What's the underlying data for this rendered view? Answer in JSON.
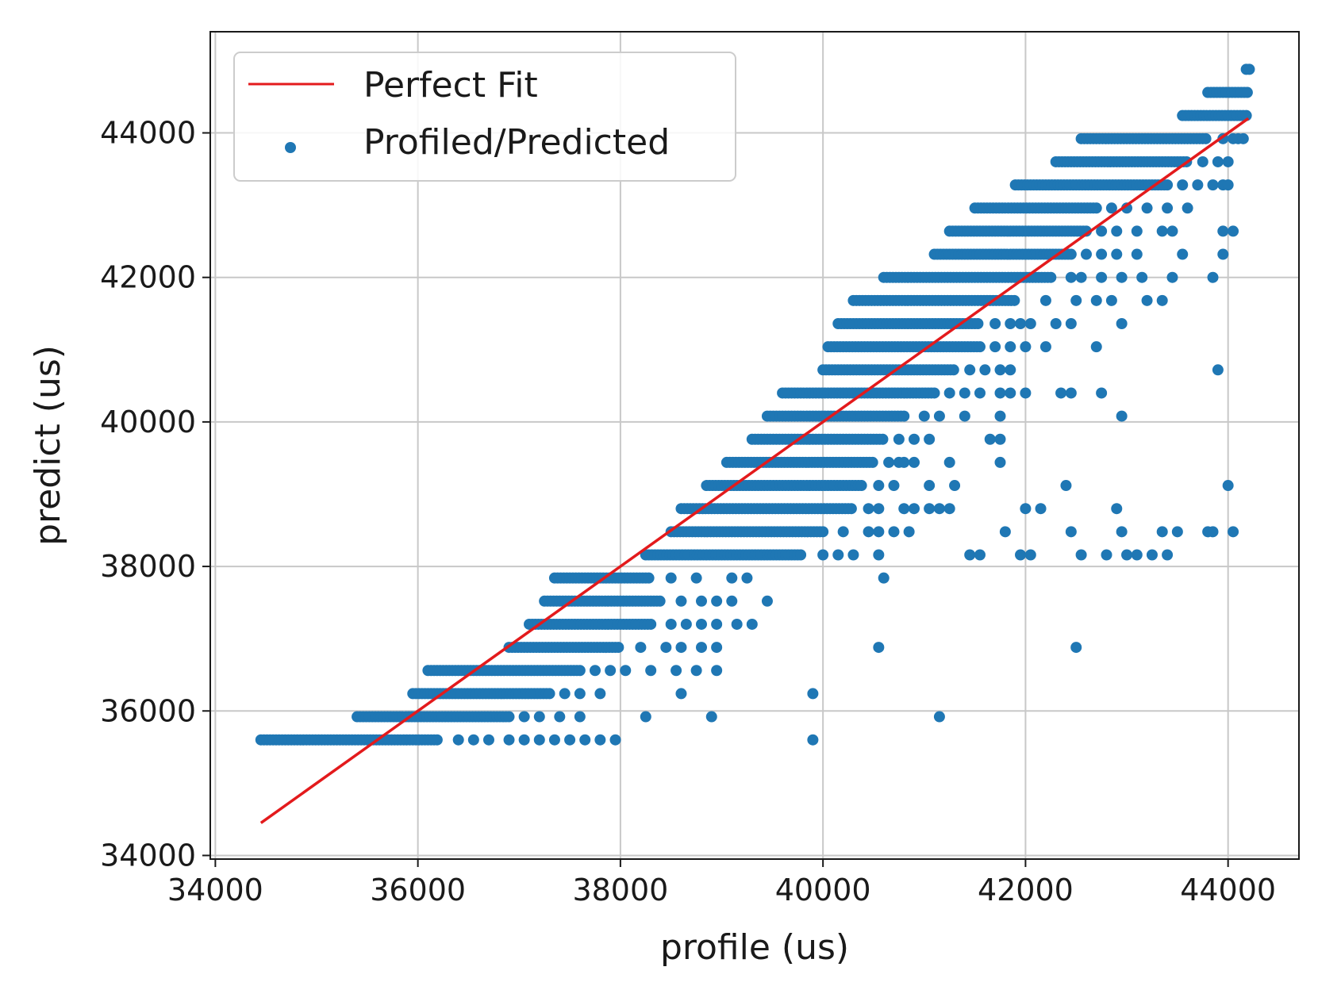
{
  "chart_data": {
    "type": "scatter",
    "title": "",
    "xlabel": "profile (us)",
    "ylabel": "predict (us)",
    "xlim": [
      33950,
      44700
    ],
    "ylim": [
      33950,
      45400
    ],
    "xticks": [
      34000,
      36000,
      38000,
      40000,
      42000,
      44000
    ],
    "yticks": [
      34000,
      36000,
      38000,
      40000,
      42000,
      44000
    ],
    "grid": true,
    "legend_position": "upper-left",
    "colors": {
      "line": "#e31a1c",
      "points": "#1f77b4"
    },
    "series": [
      {
        "name": "Perfect Fit",
        "kind": "line",
        "x": [
          34450,
          44200
        ],
        "y": [
          34450,
          44200
        ]
      },
      {
        "name": "Profiled/Predicted",
        "kind": "scatter",
        "bands": [
          {
            "y": 35600,
            "x_from": 34450,
            "x_to": 36200,
            "dense_to": 36200,
            "sparse": [
              36400,
              36550,
              36700,
              36900,
              37050,
              37200,
              37350,
              37500,
              37650,
              37800,
              37950,
              39900
            ]
          },
          {
            "y": 35920,
            "x_from": 35400,
            "x_to": 36900,
            "dense_to": 36900,
            "sparse": [
              37050,
              37200,
              37400,
              37600,
              38250,
              38900,
              41150
            ]
          },
          {
            "y": 36240,
            "x_from": 35950,
            "x_to": 37300,
            "dense_to": 37300,
            "sparse": [
              37450,
              37600,
              37800,
              38600,
              39900
            ]
          },
          {
            "y": 36560,
            "x_from": 36100,
            "x_to": 37600,
            "dense_to": 37600,
            "sparse": [
              37750,
              37900,
              38050,
              38300,
              38550,
              38750,
              38950
            ]
          },
          {
            "y": 36880,
            "x_from": 36900,
            "x_to": 38000,
            "dense_to": 38000,
            "sparse": [
              38200,
              38450,
              38600,
              38800,
              38950,
              40550,
              42500
            ]
          },
          {
            "y": 37200,
            "x_from": 37100,
            "x_to": 38300,
            "dense_to": 38300,
            "sparse": [
              38500,
              38650,
              38800,
              38950,
              39150,
              39300
            ]
          },
          {
            "y": 37520,
            "x_from": 37250,
            "x_to": 38400,
            "dense_to": 38400,
            "sparse": [
              38600,
              38800,
              38950,
              39100,
              39450
            ]
          },
          {
            "y": 37840,
            "x_from": 37350,
            "x_to": 38300,
            "dense_to": 38300,
            "sparse": [
              38500,
              38750,
              39100,
              39250,
              40600
            ]
          },
          {
            "y": 38160,
            "x_from": 38250,
            "x_to": 39800,
            "dense_to": 39800,
            "sparse": [
              40000,
              40150,
              40300,
              40550,
              41450,
              41550,
              41950,
              42050,
              42550,
              42800,
              43000,
              43100,
              43250,
              43400
            ]
          },
          {
            "y": 38480,
            "x_from": 38500,
            "x_to": 40000,
            "dense_to": 40000,
            "sparse": [
              40200,
              40450,
              40550,
              40700,
              40850,
              41800,
              42450,
              42950,
              43350,
              43500,
              43800,
              43850,
              44050
            ]
          },
          {
            "y": 38800,
            "x_from": 38600,
            "x_to": 40300,
            "dense_to": 40300,
            "sparse": [
              40450,
              40550,
              40800,
              40900,
              41050,
              41150,
              41250,
              42000,
              42150,
              42900
            ]
          },
          {
            "y": 39120,
            "x_from": 38850,
            "x_to": 40400,
            "dense_to": 40400,
            "sparse": [
              40550,
              40700,
              41050,
              41300,
              42400,
              44000
            ]
          },
          {
            "y": 39440,
            "x_from": 39050,
            "x_to": 40500,
            "dense_to": 40500,
            "sparse": [
              40650,
              40750,
              40800,
              40900,
              41250,
              41750
            ]
          },
          {
            "y": 39760,
            "x_from": 39300,
            "x_to": 40600,
            "dense_to": 40600,
            "sparse": [
              40750,
              40900,
              41050,
              41650,
              41750
            ]
          },
          {
            "y": 40080,
            "x_from": 39450,
            "x_to": 40800,
            "dense_to": 40800,
            "sparse": [
              41000,
              41150,
              41400,
              41750,
              42950
            ]
          },
          {
            "y": 40400,
            "x_from": 39600,
            "x_to": 41100,
            "dense_to": 41100,
            "sparse": [
              41250,
              41400,
              41550,
              41750,
              41850,
              42000,
              42350,
              42450,
              42750
            ]
          },
          {
            "y": 40720,
            "x_from": 40000,
            "x_to": 41300,
            "dense_to": 41300,
            "sparse": [
              41450,
              41600,
              41750,
              41850,
              43900
            ]
          },
          {
            "y": 41040,
            "x_from": 40050,
            "x_to": 41550,
            "dense_to": 41550,
            "sparse": [
              41700,
              41850,
              42000,
              42200,
              42700
            ]
          },
          {
            "y": 41360,
            "x_from": 40150,
            "x_to": 41550,
            "dense_to": 41550,
            "sparse": [
              41700,
              41850,
              41950,
              42050,
              42300,
              42450,
              42950
            ]
          },
          {
            "y": 41680,
            "x_from": 40300,
            "x_to": 41900,
            "dense_to": 41900,
            "sparse": [
              42200,
              42500,
              42700,
              42850,
              43200,
              43350
            ]
          },
          {
            "y": 42000,
            "x_from": 40600,
            "x_to": 42250,
            "dense_to": 42250,
            "sparse": [
              42450,
              42550,
              42750,
              42950,
              43150,
              43450,
              43850
            ]
          },
          {
            "y": 42320,
            "x_from": 41100,
            "x_to": 42450,
            "dense_to": 42450,
            "sparse": [
              42600,
              42750,
              42900,
              43100,
              43550,
              43950
            ]
          },
          {
            "y": 42640,
            "x_from": 41250,
            "x_to": 42600,
            "dense_to": 42600,
            "sparse": [
              42750,
              42900,
              43100,
              43350,
              43450,
              43950,
              44050
            ]
          },
          {
            "y": 42960,
            "x_from": 41500,
            "x_to": 42700,
            "dense_to": 42700,
            "sparse": [
              42850,
              43000,
              43200,
              43400,
              43600
            ]
          },
          {
            "y": 43280,
            "x_from": 41900,
            "x_to": 43400,
            "dense_to": 43400,
            "sparse": [
              43550,
              43700,
              43850,
              43950,
              44000
            ]
          },
          {
            "y": 43600,
            "x_from": 42300,
            "x_to": 43600,
            "dense_to": 43600,
            "sparse": [
              43750,
              43900,
              44000
            ]
          },
          {
            "y": 43920,
            "x_from": 42550,
            "x_to": 43800,
            "dense_to": 43800,
            "sparse": [
              43950,
              44050,
              44100,
              44150
            ]
          },
          {
            "y": 44240,
            "x_from": 43550,
            "x_to": 44200,
            "dense_to": 44200,
            "sparse": []
          },
          {
            "y": 44560,
            "x_from": 43800,
            "x_to": 44200,
            "dense_to": 44200,
            "sparse": []
          },
          {
            "y": 44880,
            "x_from": 44180,
            "x_to": 44220,
            "dense_to": 44220,
            "sparse": []
          }
        ]
      }
    ]
  }
}
